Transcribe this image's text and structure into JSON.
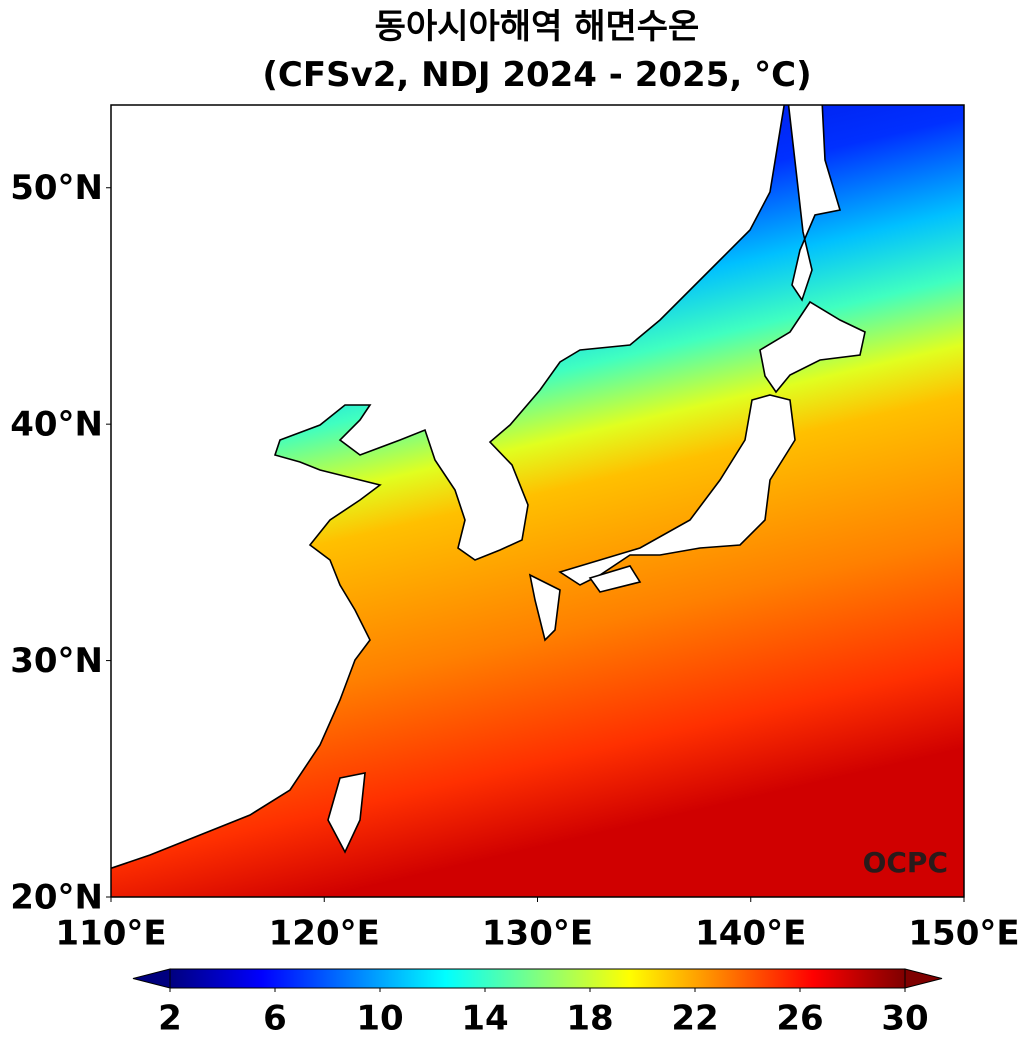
{
  "title": [
    "동아시아해역 해면수온",
    "(CFSv2, NDJ 2024 - 2025, °C)"
  ],
  "map": {
    "xlim": [
      110,
      150
    ],
    "ylim": [
      20,
      53.5
    ],
    "xticks": [
      {
        "value": 110,
        "label": "110°E"
      },
      {
        "value": 120,
        "label": "120°E"
      },
      {
        "value": 130,
        "label": "130°E"
      },
      {
        "value": 140,
        "label": "140°E"
      },
      {
        "value": 150,
        "label": "150°E"
      }
    ],
    "yticks": [
      {
        "value": 20,
        "label": "20°N"
      },
      {
        "value": 30,
        "label": "30°N"
      },
      {
        "value": 40,
        "label": "40°N"
      },
      {
        "value": 50,
        "label": "50°N"
      }
    ],
    "watermark": "OCPC"
  },
  "colorbar": {
    "lim": [
      2,
      30
    ],
    "ticks": [
      2,
      6,
      10,
      14,
      18,
      22,
      26,
      30
    ],
    "colors": [
      "#00007f",
      "#0000ff",
      "#0080ff",
      "#00ffff",
      "#80ff80",
      "#ffff00",
      "#ff8000",
      "#ff0000",
      "#7f0000"
    ]
  }
}
